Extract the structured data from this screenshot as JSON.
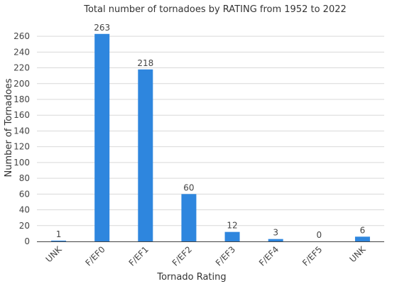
{
  "chart_data": {
    "type": "bar",
    "title": "Total number of tornadoes by RATING from 1952 to 2022",
    "xlabel": "Tornado Rating",
    "ylabel": "Number of Tornadoes",
    "categories": [
      "UNK",
      "F/EF0",
      "F/EF1",
      "F/EF2",
      "F/EF3",
      "F/EF4",
      "F/EF5",
      "UNK"
    ],
    "values": [
      1,
      263,
      218,
      60,
      12,
      3,
      0,
      6
    ],
    "ylim": [
      0,
      270
    ],
    "yticks": [
      0,
      20,
      40,
      60,
      80,
      100,
      120,
      140,
      160,
      180,
      200,
      220,
      240,
      260
    ],
    "grid": true,
    "bar_color": "#2e86de",
    "legend": "none"
  }
}
